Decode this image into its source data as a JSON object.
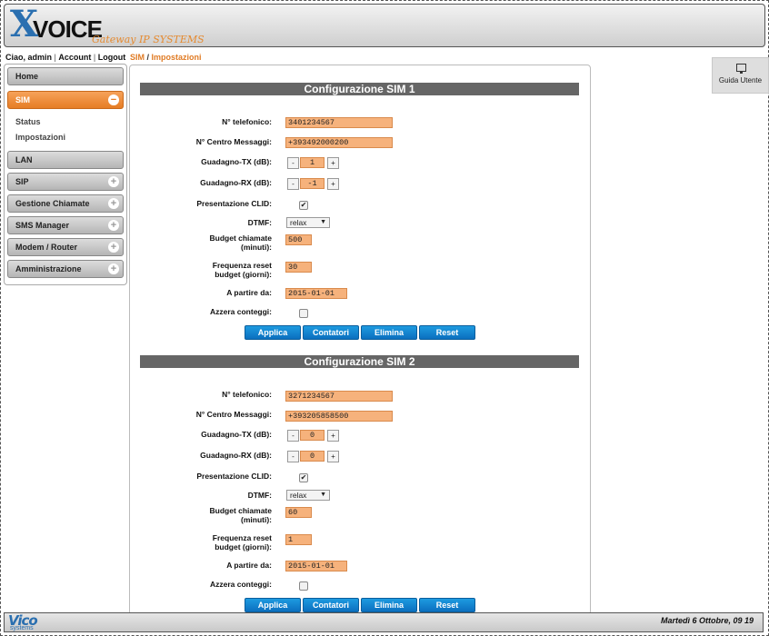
{
  "header": {
    "logo_x": "X",
    "logo_voice": "VOICE",
    "logo_tagline": "Gateway IP SYSTEMS"
  },
  "userbar": {
    "greeting": "Ciao, admin",
    "account": "Account",
    "logout": "Logout"
  },
  "breadcrumb": {
    "section": "SIM",
    "page": "Impostazioni"
  },
  "sidebar": {
    "items": [
      {
        "label": "Home"
      },
      {
        "label": "SIM"
      },
      {
        "label": "LAN"
      },
      {
        "label": "SIP"
      },
      {
        "label": "Gestione Chiamate"
      },
      {
        "label": "SMS Manager"
      },
      {
        "label": "Modem / Router"
      },
      {
        "label": "Amministrazione"
      }
    ],
    "sim_sub": [
      "Status",
      "Impostazioni"
    ],
    "expanded_symbol": "−",
    "collapsed_symbol": "+"
  },
  "help": {
    "label": "Guida Utente"
  },
  "labels": {
    "phone": "N° telefonico:",
    "msg_center": "N° Centro Messaggi:",
    "gain_tx": "Guadagno-TX (dB):",
    "gain_rx": "Guadagno-RX (dB):",
    "clid": "Presentazione CLID:",
    "dtmf": "DTMF:",
    "budget_1": "Budget chiamate",
    "budget_2": "(minuti):",
    "reset_1": "Frequenza reset",
    "reset_2": "budget (giorni):",
    "from": "A partire da:",
    "zero": "Azzera conteggi:"
  },
  "stepper": {
    "minus": "-",
    "plus": "+"
  },
  "buttons": {
    "apply": "Applica",
    "counters": "Contatori",
    "delete": "Elimina",
    "reset": "Reset"
  },
  "sims": [
    {
      "title": "Configurazione SIM 1",
      "phone": "3401234567",
      "msg_center": "+393492000200",
      "gain_tx": "1",
      "gain_rx": "-1",
      "clid": "✔",
      "dtmf": "relax",
      "budget": "500",
      "reset_days": "30",
      "from_date": "2015-01-01"
    },
    {
      "title": "Configurazione SIM 2",
      "phone": "3271234567",
      "msg_center": "+393205858500",
      "gain_tx": "0",
      "gain_rx": "0",
      "clid": "✔",
      "dtmf": "relax",
      "budget": "60",
      "reset_days": "1",
      "from_date": "2015-01-01"
    }
  ],
  "footer": {
    "logo": "Vico",
    "logo_sub": "systems",
    "datetime": "Martedì 6 Ottobre, 09 19"
  }
}
